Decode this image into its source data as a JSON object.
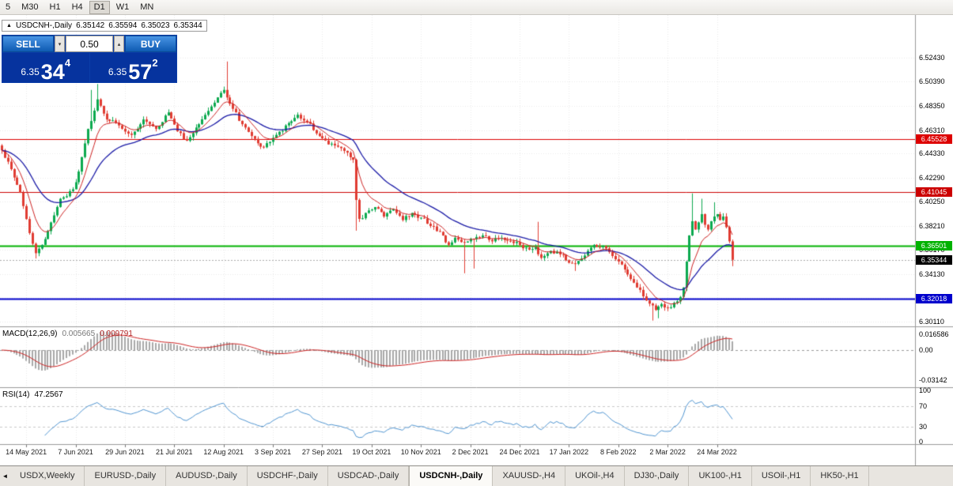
{
  "icons": {
    "collapse_panel": "▲",
    "spinner_up": "▴",
    "spinner_down": "▾",
    "tab_scroll_left": "◄"
  },
  "toolbar": {
    "timeframes": [
      {
        "label": "5",
        "active": false
      },
      {
        "label": "M30",
        "active": false
      },
      {
        "label": "H1",
        "active": false
      },
      {
        "label": "H4",
        "active": false
      },
      {
        "label": "D1",
        "active": true
      },
      {
        "label": "W1",
        "active": false
      },
      {
        "label": "MN",
        "active": false
      }
    ]
  },
  "chart": {
    "title": {
      "symbol": "USDCNH-,Daily",
      "open": "6.35142",
      "high": "6.35594",
      "low": "6.35023",
      "close": "6.35344"
    },
    "trade_panel": {
      "sell_label": "SELL",
      "buy_label": "BUY",
      "volume": "0.50",
      "sell_price": {
        "prefix": "6.35",
        "big": "34",
        "sup": "4"
      },
      "buy_price": {
        "prefix": "6.35",
        "big": "57",
        "sup": "2"
      }
    }
  },
  "chart_data": {
    "type": "candlestick",
    "symbol": "USDCNH",
    "timeframe": "Daily",
    "bars": 238,
    "price_range": [
      6.2978,
      6.5603
    ],
    "y_ticks": [
      "6.52430",
      "6.50390",
      "6.48350",
      "6.46310",
      "6.44330",
      "6.42290",
      "6.40250",
      "6.38210",
      "6.36170",
      "6.34130",
      "6.32090",
      "6.30110"
    ],
    "dates": [
      {
        "label": "14 May 2021",
        "i": 8
      },
      {
        "label": "7 Jun 2021",
        "i": 24
      },
      {
        "label": "29 Jun 2021",
        "i": 40
      },
      {
        "label": "21 Jul 2021",
        "i": 56
      },
      {
        "label": "12 Aug 2021",
        "i": 72
      },
      {
        "label": "3 Sep 2021",
        "i": 88
      },
      {
        "label": "27 Sep 2021",
        "i": 104
      },
      {
        "label": "19 Oct 2021",
        "i": 120
      },
      {
        "label": "10 Nov 2021",
        "i": 136
      },
      {
        "label": "2 Dec 2021",
        "i": 152
      },
      {
        "label": "24 Dec 2021",
        "i": 168
      },
      {
        "label": "17 Jan 2022",
        "i": 184
      },
      {
        "label": "8 Feb 2022",
        "i": 200
      },
      {
        "label": "2 Mar 2022",
        "i": 216
      },
      {
        "label": "24 Mar 2022",
        "i": 232
      }
    ],
    "levels": [
      {
        "value": 6.45528,
        "label": "6.45528",
        "color": "#dd0000",
        "width": 1
      },
      {
        "value": 6.41045,
        "label": "6.41045",
        "color": "#cc0000",
        "width": 1
      },
      {
        "value": 6.36501,
        "label": "6.36501",
        "color": "#00b200",
        "width": 2
      },
      {
        "value": 6.32018,
        "label": "6.32018",
        "color": "#0000cc",
        "width": 2
      }
    ],
    "current_price": {
      "value": 6.35344,
      "label": "6.35344",
      "bg": "#000000"
    },
    "ma": {
      "fast_period": 8,
      "slow_period": 25,
      "fast_color": "#cc2222",
      "slow_color": "#1a1aa6"
    },
    "colors": {
      "up": "#0ca94f",
      "down": "#e03c32",
      "grid": "#e9e9e9",
      "border": "#9a9a9a"
    },
    "anchors": [
      [
        0,
        6.446
      ],
      [
        3,
        6.43
      ],
      [
        6,
        6.41
      ],
      [
        9,
        6.376
      ],
      [
        11,
        6.359
      ],
      [
        13,
        6.366
      ],
      [
        16,
        6.385
      ],
      [
        19,
        6.405
      ],
      [
        23,
        6.413
      ],
      [
        25,
        6.428
      ],
      [
        28,
        6.464
      ],
      [
        31,
        6.489
      ],
      [
        34,
        6.472
      ],
      [
        38,
        6.467
      ],
      [
        42,
        6.459
      ],
      [
        46,
        6.472
      ],
      [
        50,
        6.464
      ],
      [
        54,
        6.478
      ],
      [
        57,
        6.462
      ],
      [
        60,
        6.454
      ],
      [
        64,
        6.468
      ],
      [
        68,
        6.483
      ],
      [
        72,
        6.497
      ],
      [
        75,
        6.481
      ],
      [
        78,
        6.468
      ],
      [
        81,
        6.458
      ],
      [
        84,
        6.449
      ],
      [
        86,
        6.452
      ],
      [
        89,
        6.459
      ],
      [
        93,
        6.469
      ],
      [
        96,
        6.476
      ],
      [
        99,
        6.47
      ],
      [
        101,
        6.463
      ],
      [
        104,
        6.456
      ],
      [
        108,
        6.45
      ],
      [
        112,
        6.444
      ],
      [
        114,
        6.438
      ],
      [
        115,
        6.404
      ],
      [
        116,
        6.388
      ],
      [
        118,
        6.393
      ],
      [
        121,
        6.398
      ],
      [
        124,
        6.39
      ],
      [
        127,
        6.396
      ],
      [
        130,
        6.387
      ],
      [
        133,
        6.393
      ],
      [
        136,
        6.389
      ],
      [
        139,
        6.382
      ],
      [
        142,
        6.377
      ],
      [
        145,
        6.366
      ],
      [
        147,
        6.372
      ],
      [
        150,
        6.368
      ],
      [
        153,
        6.371
      ],
      [
        156,
        6.374
      ],
      [
        159,
        6.369
      ],
      [
        162,
        6.372
      ],
      [
        165,
        6.369
      ],
      [
        168,
        6.366
      ],
      [
        171,
        6.362
      ],
      [
        173,
        6.364
      ],
      [
        175,
        6.355
      ],
      [
        178,
        6.361
      ],
      [
        181,
        6.358
      ],
      [
        183,
        6.353
      ],
      [
        186,
        6.35
      ],
      [
        189,
        6.357
      ],
      [
        192,
        6.366
      ],
      [
        195,
        6.365
      ],
      [
        197,
        6.36
      ],
      [
        200,
        6.352
      ],
      [
        203,
        6.341
      ],
      [
        206,
        6.33
      ],
      [
        209,
        6.319
      ],
      [
        212,
        6.311
      ],
      [
        214,
        6.316
      ],
      [
        216,
        6.313
      ],
      [
        218,
        6.317
      ],
      [
        220,
        6.322
      ],
      [
        221,
        6.33
      ],
      [
        222,
        6.352
      ],
      [
        223,
        6.374
      ],
      [
        224,
        6.386
      ],
      [
        225,
        6.379
      ],
      [
        226,
        6.385
      ],
      [
        227,
        6.392
      ],
      [
        228,
        6.383
      ],
      [
        229,
        6.379
      ],
      [
        230,
        6.386
      ],
      [
        231,
        6.39
      ],
      [
        232,
        6.392
      ],
      [
        233,
        6.387
      ],
      [
        234,
        6.39
      ],
      [
        235,
        6.381
      ],
      [
        236,
        6.369
      ],
      [
        237,
        6.3534
      ]
    ],
    "wicks": [
      {
        "i": 11,
        "low": 6.3545
      },
      {
        "i": 29,
        "high": 6.497
      },
      {
        "i": 31,
        "high": 6.502
      },
      {
        "i": 73,
        "high": 6.521
      },
      {
        "i": 115,
        "low": 6.378
      },
      {
        "i": 150,
        "low": 6.342
      },
      {
        "i": 153,
        "low": 6.346
      },
      {
        "i": 174,
        "high": 6.3855
      },
      {
        "i": 186,
        "low": 6.344
      },
      {
        "i": 211,
        "low": 6.302
      },
      {
        "i": 213,
        "low": 6.304
      },
      {
        "i": 224,
        "high": 6.4095
      },
      {
        "i": 227,
        "high": 6.405
      },
      {
        "i": 231,
        "high": 6.402
      },
      {
        "i": 237,
        "low": 6.348
      }
    ]
  },
  "macd": {
    "label": "MACD(12,26,9)",
    "value_main": "0.005665",
    "value_signal": "0.009791",
    "axis_top": "0.016586",
    "axis_zero": "0.00",
    "axis_bottom": "-0.03142",
    "fast": 12,
    "slow": 26,
    "signal": 9,
    "hist_color": "#a8a8a8",
    "signal_color": "#cc2222"
  },
  "rsi": {
    "label": "RSI(14)",
    "value": "47.2567",
    "period": 14,
    "axis": [
      "100",
      "70",
      "30",
      "0"
    ],
    "levels": [
      70,
      30
    ],
    "line_color": "#4f94d0"
  },
  "tabs": [
    {
      "label": "USDX,Weekly",
      "active": false
    },
    {
      "label": "EURUSD-,Daily",
      "active": false
    },
    {
      "label": "AUDUSD-,Daily",
      "active": false
    },
    {
      "label": "USDCHF-,Daily",
      "active": false
    },
    {
      "label": "USDCAD-,Daily",
      "active": false
    },
    {
      "label": "USDCNH-,Daily",
      "active": true
    },
    {
      "label": "XAUUSD-,H4",
      "active": false
    },
    {
      "label": "UKOil-,H4",
      "active": false
    },
    {
      "label": "DJ30-,Daily",
      "active": false
    },
    {
      "label": "UK100-,H1",
      "active": false
    },
    {
      "label": "USOil-,H1",
      "active": false
    },
    {
      "label": "HK50-,H1",
      "active": false
    }
  ]
}
